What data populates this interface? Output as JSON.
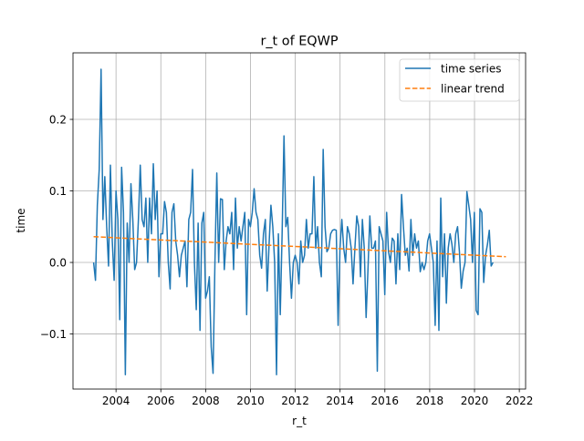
{
  "chart_data": {
    "type": "line",
    "title": "r_t of EQWP",
    "xlabel": "r_t",
    "ylabel": "time",
    "xlim": [
      2002.08,
      2022.28
    ],
    "ylim": [
      -0.177,
      0.293
    ],
    "x_ticks": [
      2004,
      2006,
      2008,
      2010,
      2012,
      2014,
      2016,
      2018,
      2020,
      2022
    ],
    "x_tick_labels": [
      "2004",
      "2006",
      "2008",
      "2010",
      "2012",
      "2014",
      "2016",
      "2018",
      "2020",
      "2022"
    ],
    "y_ticks": [
      -0.1,
      0.0,
      0.1,
      0.2
    ],
    "y_tick_labels": [
      "−0.1",
      "0.0",
      "0.1",
      "0.2"
    ],
    "grid": true,
    "legend_position": "top-right",
    "series": [
      {
        "name": "time series",
        "color": "#1f77b4",
        "style": "solid",
        "x_start": 2003.0,
        "x_step": 0.0833,
        "values": [
          0.0,
          -0.025,
          0.08,
          0.13,
          0.27,
          0.06,
          0.12,
          0.05,
          -0.005,
          0.136,
          0.03,
          -0.025,
          0.1,
          0.06,
          -0.08,
          0.133,
          0.07,
          -0.157,
          0.055,
          0.0,
          0.11,
          0.06,
          -0.01,
          0.0,
          0.06,
          0.136,
          0.06,
          0.05,
          0.09,
          0.0,
          0.09,
          0.04,
          0.138,
          0.06,
          0.1,
          -0.02,
          0.04,
          0.04,
          0.085,
          0.07,
          0.0,
          -0.037,
          0.07,
          0.082,
          0.03,
          0.01,
          -0.02,
          0.01,
          0.02,
          0.03,
          -0.034,
          0.06,
          0.07,
          0.13,
          0.0,
          -0.066,
          0.055,
          -0.095,
          0.055,
          0.07,
          -0.05,
          -0.04,
          -0.02,
          -0.118,
          -0.155,
          0.0,
          0.125,
          0.0,
          0.089,
          0.088,
          -0.01,
          0.03,
          0.05,
          0.04,
          0.07,
          -0.01,
          0.09,
          0.02,
          0.05,
          0.03,
          0.05,
          0.07,
          -0.073,
          0.06,
          0.05,
          0.07,
          0.103,
          0.07,
          0.06,
          0.01,
          -0.008,
          0.04,
          0.06,
          -0.04,
          0.025,
          0.08,
          0.05,
          0.0,
          -0.157,
          0.04,
          -0.073,
          0.04,
          0.177,
          0.05,
          0.063,
          0.0,
          -0.05,
          0.0,
          0.01,
          0.0,
          -0.03,
          0.03,
          0.0,
          0.01,
          0.06,
          0.02,
          0.04,
          0.04,
          0.12,
          0.02,
          0.05,
          0.0,
          -0.02,
          0.158,
          0.05,
          0.015,
          0.02,
          0.04,
          0.045,
          0.046,
          0.045,
          -0.088,
          0.02,
          0.06,
          0.02,
          0.0,
          0.05,
          0.04,
          0.02,
          -0.03,
          0.02,
          0.065,
          0.05,
          -0.02,
          0.06,
          0.02,
          -0.077,
          -0.01,
          0.065,
          0.02,
          0.02,
          0.03,
          -0.152,
          0.05,
          0.04,
          0.03,
          -0.045,
          0.07,
          0.015,
          0.0,
          0.034,
          0.03,
          -0.03,
          0.04,
          -0.01,
          0.095,
          0.05,
          0.01,
          0.02,
          -0.012,
          0.06,
          0.01,
          0.04,
          0.02,
          0.03,
          -0.013,
          0.0,
          -0.01,
          0.0,
          0.03,
          0.04,
          0.02,
          0.0,
          -0.088,
          0.03,
          -0.095,
          0.09,
          -0.02,
          0.04,
          -0.057,
          0.02,
          0.04,
          0.025,
          0.0,
          0.04,
          0.05,
          0.015,
          -0.036,
          -0.012,
          0.0,
          0.099,
          0.08,
          0.06,
          0.0,
          0.07,
          -0.067,
          -0.073,
          0.075,
          0.07,
          -0.028,
          0.01,
          0.025,
          0.045,
          -0.005,
          0.0
        ]
      },
      {
        "name": "linear trend",
        "color": "#ff7f0e",
        "style": "dashed",
        "x": [
          2003.0,
          2021.4
        ],
        "values": [
          0.036,
          0.008
        ]
      }
    ]
  }
}
